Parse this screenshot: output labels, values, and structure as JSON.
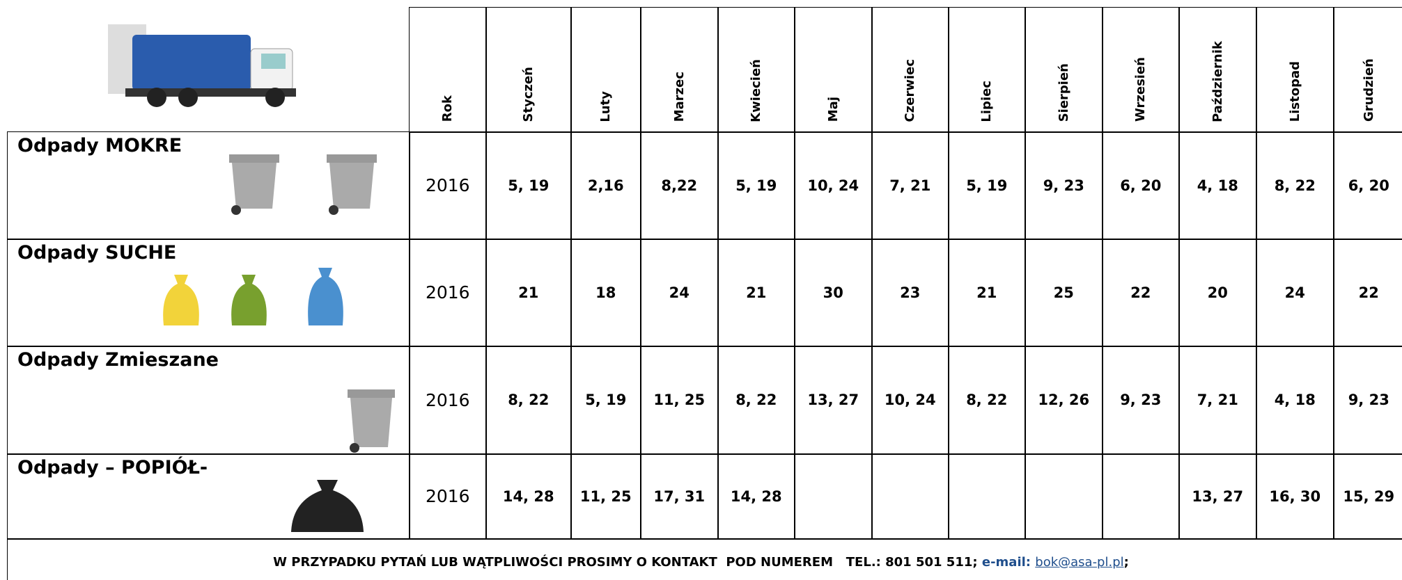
{
  "table": {
    "header": {
      "year": "Rok",
      "months": [
        "Styczeń",
        "Luty",
        "Marzec",
        "Kwiecień",
        "Maj",
        "Czerwiec",
        "Lipiec",
        "Sierpień",
        "Wrzesień",
        "Październik",
        "Listopad",
        "Grudzień"
      ]
    },
    "rows": [
      {
        "label": "Odpady MOKRE",
        "year": "2016",
        "values": [
          "5, 19",
          "2,16",
          "8,22",
          "5, 19",
          "10, 24",
          "7, 21",
          "5, 19",
          "9, 23",
          "6, 20",
          "4, 18",
          "8, 22",
          "6, 20"
        ]
      },
      {
        "label": "Odpady SUCHE",
        "year": "2016",
        "values": [
          "21",
          "18",
          "24",
          "21",
          "30",
          "23",
          "21",
          "25",
          "22",
          "20",
          "24",
          "22"
        ]
      },
      {
        "label": "Odpady Zmieszane",
        "year": "2016",
        "values": [
          "8, 22",
          "5, 19",
          "11, 25",
          "8, 22",
          "13, 27",
          "10, 24",
          "8, 22",
          "12, 26",
          "9, 23",
          "7, 21",
          "4, 18",
          "9, 23"
        ]
      },
      {
        "label": "Odpady – POPIÓŁ-",
        "year": "2016",
        "values": [
          "14, 28",
          "11, 25",
          "17, 31",
          "14, 28",
          null,
          null,
          null,
          null,
          null,
          "13, 27",
          "16, 30",
          "15, 29"
        ]
      }
    ]
  },
  "footer": {
    "text": "W PRZYPADKU PYTAŃ LUB WĄTPLIWOŚCI PROSIMY O KONTAKT  POD NUMEREM   TEL.: 801 501 511;",
    "email_label": "e-mail:",
    "email": "bok@asa-pl.pl",
    "end": ";"
  }
}
